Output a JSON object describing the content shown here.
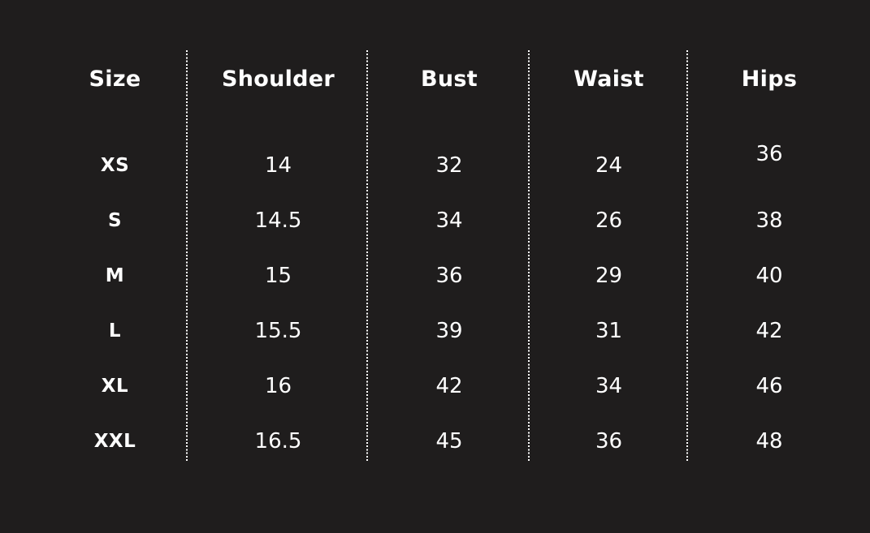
{
  "page": {
    "background_color": "#1f1d1d",
    "text_color": "#ffffff",
    "divider_color": "#ffffff",
    "divider_style": "dotted-vertical"
  },
  "chart_data": {
    "type": "table",
    "title": "",
    "columns": [
      "Size",
      "Shoulder",
      "Bust",
      "Waist",
      "Hips"
    ],
    "rows": [
      {
        "size": "XS",
        "shoulder": "14",
        "bust": "32",
        "waist": "24",
        "hips": "36"
      },
      {
        "size": "S",
        "shoulder": "14.5",
        "bust": "34",
        "waist": "26",
        "hips": "38"
      },
      {
        "size": "M",
        "shoulder": "15",
        "bust": "36",
        "waist": "29",
        "hips": "40"
      },
      {
        "size": "L",
        "shoulder": "15.5",
        "bust": "39",
        "waist": "31",
        "hips": "42"
      },
      {
        "size": "XL",
        "shoulder": "16",
        "bust": "42",
        "waist": "34",
        "hips": "46"
      },
      {
        "size": "XXL",
        "shoulder": "16.5",
        "bust": "45",
        "waist": "36",
        "hips": "48"
      }
    ],
    "layout": {
      "grid": "off",
      "column_separators": "dotted",
      "header_position": "top"
    }
  }
}
